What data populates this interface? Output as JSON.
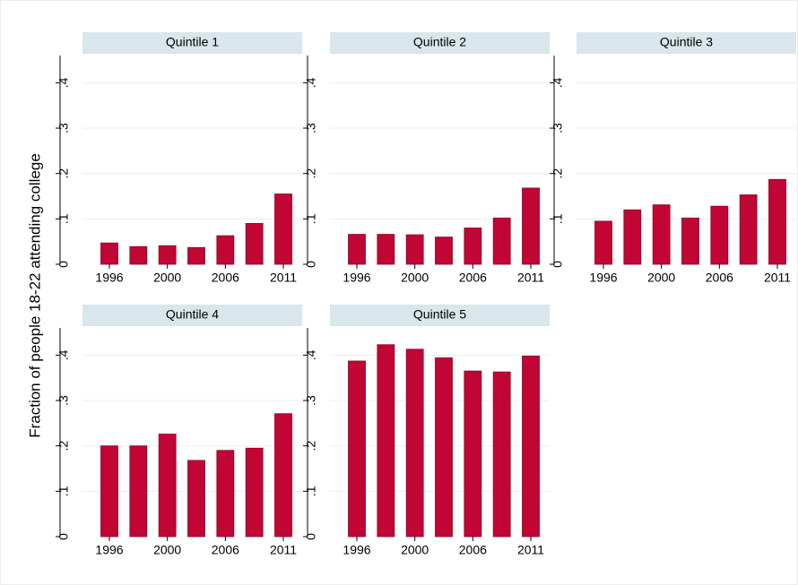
{
  "ylabel": "Fraction of people 18-22 attending college",
  "chart_data": [
    {
      "type": "bar",
      "title": "Quintile 1",
      "categories": [
        "1996",
        null,
        "2000",
        null,
        "2006",
        null,
        "2011"
      ],
      "values": [
        0.047,
        0.039,
        0.041,
        0.037,
        0.063,
        0.09,
        0.155
      ],
      "color": "#c10534",
      "ylim": [
        0,
        0.46
      ],
      "yticks": [
        0,
        {
          "value": 0.1,
          "label": ".1"
        },
        {
          "value": 0.2,
          "label": ".2"
        },
        {
          "value": 0.3,
          "label": ".3"
        },
        {
          "value": 0.4,
          "label": ".4"
        }
      ],
      "grid": true
    },
    {
      "type": "bar",
      "title": "Quintile 2",
      "categories": [
        "1996",
        null,
        "2000",
        null,
        "2006",
        null,
        "2011"
      ],
      "values": [
        0.066,
        0.066,
        0.065,
        0.06,
        0.08,
        0.102,
        0.168
      ],
      "color": "#c10534",
      "ylim": [
        0,
        0.46
      ],
      "yticks": [
        0,
        {
          "value": 0.1,
          "label": ".1"
        },
        {
          "value": 0.2,
          "label": ".2"
        },
        {
          "value": 0.3,
          "label": ".3"
        },
        {
          "value": 0.4,
          "label": ".4"
        }
      ],
      "grid": true
    },
    {
      "type": "bar",
      "title": "Quintile 3",
      "categories": [
        "1996",
        null,
        "2000",
        null,
        "2006",
        null,
        "2011"
      ],
      "values": [
        0.095,
        0.12,
        0.131,
        0.102,
        0.128,
        0.153,
        0.187
      ],
      "color": "#c10534",
      "ylim": [
        0,
        0.46
      ],
      "yticks": [
        0,
        {
          "value": 0.1,
          "label": ".1"
        },
        {
          "value": 0.2,
          "label": ".2"
        },
        {
          "value": 0.3,
          "label": ".3"
        },
        {
          "value": 0.4,
          "label": ".4"
        }
      ],
      "grid": true
    },
    {
      "type": "bar",
      "title": "Quintile 4",
      "categories": [
        "1996",
        null,
        "2000",
        null,
        "2006",
        null,
        "2011"
      ],
      "values": [
        0.2,
        0.2,
        0.226,
        0.168,
        0.19,
        0.195,
        0.271
      ],
      "color": "#c10534",
      "ylim": [
        0,
        0.46
      ],
      "yticks": [
        0,
        {
          "value": 0.1,
          "label": ".1"
        },
        {
          "value": 0.2,
          "label": ".2"
        },
        {
          "value": 0.3,
          "label": ".3"
        },
        {
          "value": 0.4,
          "label": ".4"
        }
      ],
      "grid": true
    },
    {
      "type": "bar",
      "title": "Quintile 5",
      "categories": [
        "1996",
        null,
        "2000",
        null,
        "2006",
        null,
        "2011"
      ],
      "values": [
        0.387,
        0.423,
        0.413,
        0.394,
        0.365,
        0.363,
        0.398
      ],
      "color": "#c10534",
      "ylim": [
        0,
        0.46
      ],
      "yticks": [
        0,
        {
          "value": 0.1,
          "label": ".1"
        },
        {
          "value": 0.2,
          "label": ".2"
        },
        {
          "value": 0.3,
          "label": ".3"
        },
        {
          "value": 0.4,
          "label": ".4"
        }
      ],
      "grid": true
    }
  ]
}
